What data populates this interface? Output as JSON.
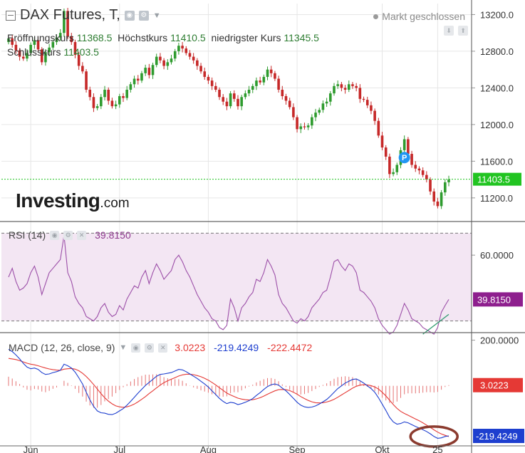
{
  "header": {
    "title": "DAX Futures, T,",
    "status": "Markt geschlossen",
    "ohlc": [
      {
        "label": "Eröffnungskurs",
        "value": "11368.5"
      },
      {
        "label": "Höchstkurs",
        "value": "11410.5"
      },
      {
        "label": "niedrigster Kurs",
        "value": "11345.5"
      },
      {
        "label": "Schlusskurs",
        "value": "11403.5"
      }
    ]
  },
  "logo": {
    "brand": "Investing",
    "suffix": ".com"
  },
  "colors": {
    "up": "#2e9b2e",
    "down": "#c62828",
    "rsi": "#9c4fa8",
    "rsi_band": "#f3e6f3",
    "macd": "#1e3fcf",
    "signal": "#e53935",
    "hist": "#e57373",
    "last_price": "#21c421",
    "grid": "#e6e6e6",
    "axis_text": "#333333",
    "annotation": "#8b3a2e",
    "trendline": "#2e9b6e"
  },
  "chart_data": [
    {
      "type": "candlestick",
      "title": "DAX Futures, T,",
      "x_labels": [
        "Jun",
        "Jul",
        "Aug",
        "Sep",
        "Okt",
        "25"
      ],
      "y_ticks": [
        11200,
        11600,
        12000,
        12400,
        12800,
        13200
      ],
      "y_tick_labels": [
        "11200.0",
        "11600.0",
        "12000.0",
        "12400.0",
        "12800.0",
        "13200.0"
      ],
      "ylim": [
        10950,
        13320
      ],
      "last_price": 11403.5,
      "last_price_label": "11403.5",
      "marker_label": "P",
      "grid": true,
      "closes": [
        12940,
        12870,
        12810,
        12740,
        12720,
        12780,
        12870,
        12920,
        12820,
        12680,
        12790,
        12840,
        12900,
        12950,
        13000,
        13240,
        12960,
        12900,
        12760,
        12640,
        12580,
        12380,
        12300,
        12180,
        12200,
        12300,
        12380,
        12260,
        12200,
        12220,
        12310,
        12290,
        12380,
        12440,
        12500,
        12480,
        12560,
        12620,
        12540,
        12650,
        12740,
        12700,
        12640,
        12680,
        12720,
        12800,
        12860,
        12830,
        12780,
        12740,
        12700,
        12640,
        12580,
        12520,
        12480,
        12420,
        12380,
        12300,
        12250,
        12200,
        12340,
        12280,
        12200,
        12300,
        12340,
        12380,
        12420,
        12480,
        12460,
        12520,
        12600,
        12560,
        12500,
        12380,
        12310,
        12260,
        12190,
        12080,
        11950,
        11980,
        11970,
        11990,
        12080,
        12130,
        12160,
        12230,
        12250,
        12340,
        12420,
        12440,
        12400,
        12380,
        12440,
        12420,
        12400,
        12280,
        12270,
        12210,
        12150,
        12040,
        11880,
        11750,
        11650,
        11460,
        11480,
        11560,
        11720,
        11840,
        11680,
        11560,
        11520,
        11500,
        11450,
        11400,
        11270,
        11160,
        11110,
        11260,
        11370,
        11400
      ],
      "x_start": 0,
      "x_end": 119
    },
    {
      "type": "line",
      "title": "RSI (14)",
      "current_value": 39.815,
      "current_label": "39.8150",
      "y_ticks": [
        60
      ],
      "y_tick_labels": [
        "60.0000"
      ],
      "bands": [
        30,
        70
      ],
      "ylim": [
        25,
        75
      ],
      "values": [
        50,
        54,
        48,
        44,
        45,
        47,
        52,
        55,
        50,
        42,
        47,
        52,
        54,
        56,
        58,
        69,
        52,
        48,
        41,
        38,
        36,
        32,
        31,
        30,
        32,
        36,
        38,
        34,
        32,
        33,
        37,
        35,
        40,
        43,
        46,
        45,
        50,
        53,
        47,
        52,
        56,
        53,
        49,
        51,
        53,
        58,
        60,
        57,
        53,
        50,
        46,
        42,
        39,
        36,
        34,
        31,
        30,
        27,
        26,
        28,
        40,
        36,
        30,
        36,
        38,
        41,
        43,
        49,
        48,
        52,
        58,
        55,
        51,
        42,
        38,
        36,
        33,
        30,
        29,
        31,
        30,
        32,
        36,
        38,
        40,
        43,
        44,
        50,
        57,
        58,
        55,
        53,
        56,
        55,
        52,
        44,
        43,
        41,
        39,
        36,
        31,
        28,
        26,
        24,
        25,
        28,
        33,
        38,
        35,
        31,
        30,
        29,
        27,
        26,
        25,
        24,
        27,
        34,
        37,
        39.815
      ],
      "trendline": {
        "from": [
          112,
          24
        ],
        "to": [
          119,
          33
        ]
      }
    },
    {
      "type": "line",
      "title": "MACD (12, 26, close, 9)",
      "values_shown": [
        "3.0223",
        "-219.4249",
        "-222.4472"
      ],
      "current_labels": [
        "3.0223",
        "-219.4249"
      ],
      "y_ticks": [
        200
      ],
      "y_tick_labels": [
        "200.0000"
      ],
      "ylim": [
        -260,
        230
      ],
      "series": [
        {
          "name": "MACD",
          "values": [
            160,
            150,
            135,
            118,
            98,
            82,
            75,
            78,
            72,
            58,
            50,
            52,
            58,
            62,
            68,
            95,
            88,
            78,
            60,
            35,
            8,
            -28,
            -62,
            -90,
            -110,
            -118,
            -120,
            -125,
            -126,
            -120,
            -110,
            -100,
            -85,
            -68,
            -50,
            -32,
            -15,
            2,
            15,
            28,
            42,
            50,
            52,
            55,
            58,
            65,
            72,
            70,
            62,
            52,
            42,
            32,
            20,
            8,
            -5,
            -22,
            -38,
            -55,
            -68,
            -78,
            -72,
            -75,
            -82,
            -78,
            -72,
            -65,
            -56,
            -42,
            -30,
            -16,
            -3,
            5,
            8,
            3,
            -10,
            -22,
            -38,
            -55,
            -72,
            -85,
            -92,
            -95,
            -93,
            -88,
            -80,
            -70,
            -60,
            -45,
            -28,
            -12,
            0,
            12,
            20,
            28,
            30,
            22,
            12,
            0,
            -12,
            -28,
            -52,
            -80,
            -108,
            -138,
            -158,
            -168,
            -165,
            -158,
            -162,
            -170,
            -178,
            -185,
            -192,
            -200,
            -210,
            -222,
            -230,
            -228,
            -222,
            -219.4249
          ]
        },
        {
          "name": "Signal",
          "values": [
            120,
            118,
            115,
            110,
            105,
            99,
            95,
            92,
            88,
            83,
            78,
            74,
            71,
            69,
            68,
            73,
            75,
            76,
            73,
            66,
            55,
            41,
            24,
            6,
            -14,
            -34,
            -52,
            -67,
            -79,
            -88,
            -92,
            -94,
            -92,
            -87,
            -80,
            -70,
            -59,
            -47,
            -34,
            -22,
            -9,
            3,
            14,
            22,
            29,
            36,
            43,
            48,
            51,
            51,
            49,
            45,
            40,
            33,
            25,
            15,
            4,
            -8,
            -20,
            -32,
            -40,
            -47,
            -54,
            -58,
            -61,
            -62,
            -61,
            -57,
            -52,
            -45,
            -37,
            -29,
            -22,
            -17,
            -16,
            -17,
            -21,
            -28,
            -37,
            -47,
            -56,
            -64,
            -70,
            -74,
            -75,
            -74,
            -71,
            -66,
            -59,
            -50,
            -40,
            -30,
            -20,
            -10,
            -2,
            3,
            5,
            4,
            1,
            -5,
            -14,
            -28,
            -44,
            -63,
            -82,
            -99,
            -112,
            -121,
            -129,
            -137,
            -145,
            -153,
            -162,
            -172,
            -182,
            -193,
            -203,
            -211,
            -217,
            -222.4472
          ]
        },
        {
          "name": "Histogram",
          "values": [
            40,
            32,
            20,
            8,
            -7,
            -17,
            -20,
            -14,
            -16,
            -25,
            -28,
            -22,
            -13,
            -7,
            0,
            22,
            13,
            2,
            -13,
            -31,
            -47,
            -69,
            -86,
            -96,
            -96,
            -84,
            -68,
            -58,
            -47,
            -32,
            -18,
            -6,
            7,
            19,
            30,
            38,
            44,
            49,
            49,
            50,
            51,
            47,
            38,
            33,
            29,
            29,
            29,
            22,
            11,
            1,
            -7,
            -13,
            -20,
            -25,
            -30,
            -37,
            -42,
            -47,
            -48,
            -46,
            -32,
            -28,
            -28,
            -20,
            -11,
            -3,
            5,
            15,
            22,
            29,
            34,
            34,
            30,
            20,
            6,
            -5,
            -17,
            -27,
            -35,
            -38,
            -36,
            -31,
            -23,
            -14,
            -5,
            4,
            11,
            21,
            31,
            38,
            40,
            42,
            40,
            38,
            32,
            19,
            7,
            -4,
            -13,
            -23,
            -38,
            -52,
            -64,
            -75,
            -76,
            -69,
            -53,
            -37,
            -33,
            -33,
            -33,
            -32,
            -30,
            -28,
            -28,
            -29,
            -27,
            -17,
            -5,
            3.0223
          ]
        }
      ],
      "annotation": "circle"
    }
  ]
}
